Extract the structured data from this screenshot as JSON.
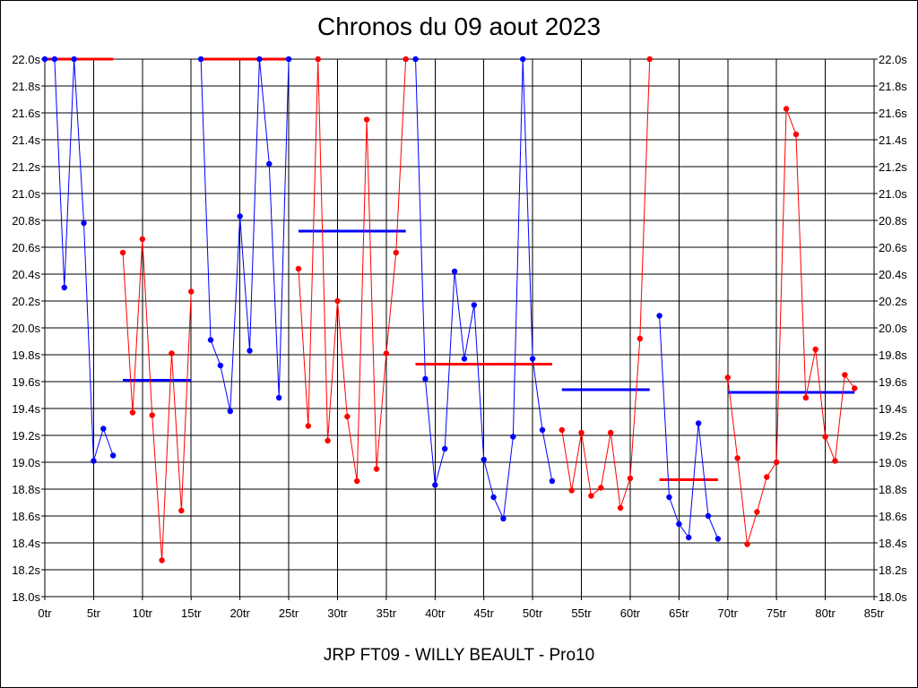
{
  "chart_data": {
    "type": "line",
    "title": "Chronos du 09 aout 2023",
    "subtitle": "JRP FT09 - WILLY BEAULT - Pro10",
    "xlim": [
      0,
      85
    ],
    "ylim": [
      18.0,
      22.0
    ],
    "grid": true,
    "x_ticks": [
      0,
      5,
      10,
      15,
      20,
      25,
      30,
      35,
      40,
      45,
      50,
      55,
      60,
      65,
      70,
      75,
      80,
      85
    ],
    "x_tick_labels": [
      "0tr",
      "5tr",
      "10tr",
      "15tr",
      "20tr",
      "25tr",
      "30tr",
      "35tr",
      "40tr",
      "45tr",
      "50tr",
      "55tr",
      "60tr",
      "65tr",
      "70tr",
      "75tr",
      "80tr",
      "85tr"
    ],
    "y_ticks": [
      18.0,
      18.2,
      18.4,
      18.6,
      18.8,
      19.0,
      19.2,
      19.4,
      19.6,
      19.8,
      20.0,
      20.2,
      20.4,
      20.6,
      20.8,
      21.0,
      21.2,
      21.4,
      21.6,
      21.8,
      22.0
    ],
    "y_tick_labels": [
      "18.0s",
      "18.2s",
      "18.4s",
      "18.6s",
      "18.8s",
      "19.0s",
      "19.2s",
      "19.4s",
      "19.6s",
      "19.8s",
      "20.0s",
      "20.2s",
      "20.4s",
      "20.6s",
      "20.8s",
      "21.0s",
      "21.2s",
      "21.4s",
      "21.6s",
      "21.8s",
      "22.0s"
    ],
    "colors": {
      "blue": "#0000ff",
      "red": "#ff0000"
    },
    "series": [
      {
        "color": "#0000ff",
        "x": [
          0,
          1,
          2,
          3,
          4,
          5,
          6,
          7
        ],
        "y": [
          22.0,
          22.0,
          20.3,
          22.0,
          20.78,
          19.01,
          19.25,
          19.05
        ]
      },
      {
        "color": "#ff0000",
        "x": [
          8,
          9,
          10,
          11,
          12,
          13,
          14,
          15
        ],
        "y": [
          20.56,
          19.37,
          20.66,
          19.35,
          18.27,
          19.81,
          18.64,
          20.27
        ]
      },
      {
        "color": "#0000ff",
        "x": [
          16,
          17,
          18,
          19,
          20,
          21,
          22,
          23,
          24,
          25
        ],
        "y": [
          22.0,
          19.91,
          19.72,
          19.38,
          20.83,
          19.83,
          22.0,
          21.22,
          19.48,
          22.0
        ]
      },
      {
        "color": "#ff0000",
        "x": [
          26,
          27,
          28,
          29,
          30,
          31,
          32,
          33,
          34,
          35,
          36,
          37
        ],
        "y": [
          20.44,
          19.27,
          22.0,
          19.16,
          20.2,
          19.34,
          18.86,
          21.55,
          18.95,
          19.81,
          20.56,
          22.0
        ]
      },
      {
        "color": "#0000ff",
        "x": [
          38,
          39,
          40,
          41,
          42,
          43,
          44,
          45,
          46,
          47,
          48,
          49,
          50,
          51,
          52
        ],
        "y": [
          22.0,
          19.62,
          18.83,
          19.1,
          20.42,
          19.77,
          20.17,
          19.02,
          18.74,
          18.58,
          19.19,
          22.0,
          19.77,
          19.24,
          18.86
        ]
      },
      {
        "color": "#ff0000",
        "x": [
          53,
          54,
          55,
          56,
          57,
          58,
          59,
          60,
          61,
          62
        ],
        "y": [
          19.24,
          18.79,
          19.22,
          18.75,
          18.81,
          19.22,
          18.66,
          18.88,
          19.92,
          22.0
        ]
      },
      {
        "color": "#0000ff",
        "x": [
          63,
          64,
          65,
          66,
          67,
          68,
          69
        ],
        "y": [
          20.09,
          18.74,
          18.54,
          18.44,
          19.29,
          18.6,
          18.43
        ]
      },
      {
        "color": "#ff0000",
        "x": [
          70,
          71,
          72,
          73,
          74,
          75,
          76,
          77,
          78,
          79,
          80,
          81,
          82,
          83
        ],
        "y": [
          19.63,
          19.03,
          18.39,
          18.63,
          18.89,
          19.0,
          21.63,
          21.44,
          19.48,
          19.84,
          19.19,
          19.01,
          19.65,
          19.55
        ]
      }
    ],
    "averages": [
      {
        "color": "#ff0000",
        "x": [
          0,
          7
        ],
        "y": 22.0
      },
      {
        "color": "#0000ff",
        "x": [
          8,
          15
        ],
        "y": 19.61
      },
      {
        "color": "#ff0000",
        "x": [
          16,
          25
        ],
        "y": 22.0
      },
      {
        "color": "#0000ff",
        "x": [
          26,
          37
        ],
        "y": 20.72
      },
      {
        "color": "#ff0000",
        "x": [
          38,
          52
        ],
        "y": 19.73
      },
      {
        "color": "#0000ff",
        "x": [
          53,
          62
        ],
        "y": 19.54
      },
      {
        "color": "#ff0000",
        "x": [
          63,
          69
        ],
        "y": 18.87
      },
      {
        "color": "#0000ff",
        "x": [
          70,
          83
        ],
        "y": 19.52
      }
    ]
  }
}
